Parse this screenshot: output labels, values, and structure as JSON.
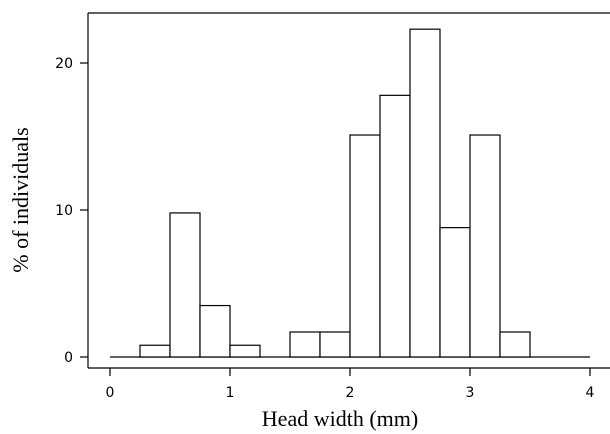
{
  "chart_data": {
    "type": "bar",
    "title": "",
    "xlabel": "Head width (mm)",
    "ylabel": "% of individuals",
    "xlim": [
      0,
      4
    ],
    "ylim": [
      0,
      23
    ],
    "xticks": [
      "0",
      "1",
      "2",
      "3",
      "4"
    ],
    "yticks": [
      "0",
      "10",
      "20"
    ],
    "bin_width": 0.25,
    "bins": [
      {
        "x_start": 0.25,
        "x_end": 0.5,
        "value": 0.8
      },
      {
        "x_start": 0.5,
        "x_end": 0.75,
        "value": 9.8
      },
      {
        "x_start": 0.75,
        "x_end": 1.0,
        "value": 3.5
      },
      {
        "x_start": 1.0,
        "x_end": 1.25,
        "value": 0.8
      },
      {
        "x_start": 1.5,
        "x_end": 1.75,
        "value": 1.7
      },
      {
        "x_start": 1.75,
        "x_end": 2.0,
        "value": 1.7
      },
      {
        "x_start": 2.0,
        "x_end": 2.25,
        "value": 15.1
      },
      {
        "x_start": 2.25,
        "x_end": 2.5,
        "value": 17.8
      },
      {
        "x_start": 2.5,
        "x_end": 2.75,
        "value": 22.3
      },
      {
        "x_start": 2.75,
        "x_end": 3.0,
        "value": 8.8
      },
      {
        "x_start": 3.0,
        "x_end": 3.25,
        "value": 15.1
      },
      {
        "x_start": 3.25,
        "x_end": 3.5,
        "value": 1.7
      }
    ],
    "grid": false,
    "legend": "none"
  }
}
